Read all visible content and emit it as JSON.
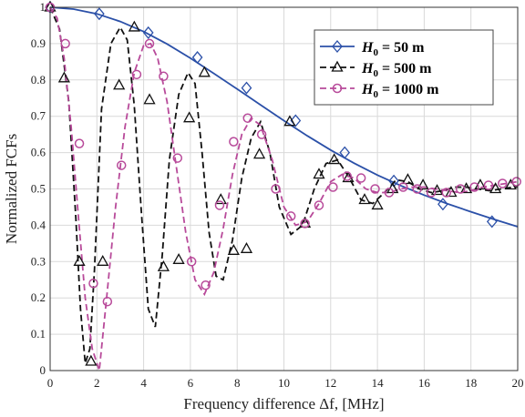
{
  "chart_data": {
    "type": "line",
    "xlabel": "Frequency difference Δf, [MHz]",
    "ylabel": "Normalized FCFs",
    "xlim": [
      0,
      20
    ],
    "ylim": [
      0,
      1
    ],
    "xticks": [
      "0",
      "2",
      "4",
      "6",
      "8",
      "10",
      "12",
      "14",
      "16",
      "18",
      "20"
    ],
    "yticks": [
      "0",
      "0.1",
      "0.2",
      "0.3",
      "0.4",
      "0.5",
      "0.6",
      "0.7",
      "0.8",
      "0.9",
      "1"
    ],
    "grid": true,
    "legend_position": "top-right",
    "series": [
      {
        "name": "H0 = 50 m",
        "legend_symbol": "H",
        "legend_subscript": "0",
        "legend_value": " = 50 m",
        "color": "#2b50a8",
        "line": "solid",
        "marker": "diamond",
        "x": [
          0,
          1,
          2,
          3,
          4,
          5,
          6,
          7,
          8,
          9,
          10,
          11,
          12,
          13,
          14,
          15,
          16,
          17,
          18,
          19,
          20
        ],
        "y": [
          1.0,
          0.995,
          0.982,
          0.961,
          0.933,
          0.899,
          0.86,
          0.818,
          0.775,
          0.731,
          0.688,
          0.646,
          0.607,
          0.571,
          0.538,
          0.509,
          0.483,
          0.459,
          0.437,
          0.416,
          0.396
        ],
        "marker_x": [
          0,
          2.1,
          4.2,
          6.3,
          8.4,
          10.5,
          12.6,
          14.7,
          16.8,
          18.9
        ],
        "marker_y": [
          1.0,
          0.982,
          0.93,
          0.862,
          0.778,
          0.688,
          0.6,
          0.522,
          0.458,
          0.41
        ]
      },
      {
        "name": "H0 = 500 m",
        "legend_symbol": "H",
        "legend_subscript": "0",
        "legend_value": " = 500 m",
        "color": "#111111",
        "line": "dashed",
        "marker": "triangle",
        "x": [
          0,
          0.4,
          0.8,
          1.1,
          1.3,
          1.5,
          1.7,
          1.9,
          2.2,
          2.6,
          3.0,
          3.3,
          3.6,
          3.9,
          4.2,
          4.5,
          4.8,
          5.1,
          5.5,
          5.9,
          6.2,
          6.5,
          6.8,
          7.1,
          7.4,
          7.8,
          8.2,
          8.6,
          9.0,
          9.4,
          9.8,
          10.3,
          10.8,
          11.3,
          11.8,
          12.3,
          12.8,
          13.3,
          13.8,
          14.3,
          14.8,
          15.3,
          15.8,
          16.3,
          16.8,
          17.3,
          17.8,
          18.3,
          18.8,
          19.3,
          19.8,
          20.0
        ],
        "y": [
          1.0,
          0.94,
          0.74,
          0.42,
          0.17,
          0.02,
          0.06,
          0.28,
          0.72,
          0.9,
          0.945,
          0.91,
          0.73,
          0.44,
          0.17,
          0.12,
          0.32,
          0.58,
          0.76,
          0.82,
          0.79,
          0.6,
          0.38,
          0.26,
          0.25,
          0.36,
          0.53,
          0.64,
          0.685,
          0.6,
          0.45,
          0.375,
          0.4,
          0.5,
          0.57,
          0.58,
          0.53,
          0.47,
          0.46,
          0.49,
          0.525,
          0.52,
          0.5,
          0.49,
          0.495,
          0.505,
          0.505,
          0.5,
          0.495,
          0.5,
          0.505,
          0.505
        ],
        "marker_x": [
          0,
          0.6,
          1.25,
          1.75,
          2.25,
          2.95,
          3.6,
          4.25,
          4.85,
          5.5,
          5.95,
          6.6,
          7.3,
          7.85,
          8.4,
          8.95,
          10.25,
          10.9,
          11.5,
          12.15,
          12.75,
          13.45,
          14.0,
          14.65,
          15.3,
          15.95,
          16.55,
          17.15,
          17.8,
          18.4,
          19.05,
          19.7
        ],
        "marker_y": [
          1.0,
          0.805,
          0.3,
          0.025,
          0.3,
          0.785,
          0.945,
          0.745,
          0.285,
          0.305,
          0.695,
          0.82,
          0.47,
          0.33,
          0.335,
          0.595,
          0.685,
          0.405,
          0.54,
          0.58,
          0.53,
          0.47,
          0.455,
          0.5,
          0.525,
          0.51,
          0.495,
          0.49,
          0.5,
          0.51,
          0.5,
          0.51
        ]
      },
      {
        "name": "H0 = 1000 m",
        "legend_symbol": "H",
        "legend_subscript": "0",
        "legend_value": " = 1000 m",
        "color": "#b84a9a",
        "line": "dashed",
        "marker": "circle",
        "x": [
          0,
          0.3,
          0.6,
          0.9,
          1.2,
          1.5,
          1.8,
          2.1,
          2.4,
          2.8,
          3.2,
          3.6,
          4.0,
          4.3,
          4.6,
          5.0,
          5.4,
          5.8,
          6.2,
          6.6,
          7.0,
          7.4,
          7.8,
          8.2,
          8.6,
          9.0,
          9.5,
          10.0,
          10.5,
          11.0,
          11.5,
          12.0,
          12.5,
          13.0,
          13.5,
          14.0,
          14.5,
          15.0,
          15.5,
          16.0,
          16.5,
          17.0,
          17.5,
          18.0,
          18.5,
          19.0,
          19.5,
          20.0
        ],
        "y": [
          1.0,
          0.97,
          0.86,
          0.67,
          0.43,
          0.2,
          0.06,
          0.0,
          0.19,
          0.45,
          0.67,
          0.82,
          0.895,
          0.9,
          0.86,
          0.74,
          0.56,
          0.38,
          0.25,
          0.21,
          0.27,
          0.39,
          0.54,
          0.65,
          0.695,
          0.675,
          0.58,
          0.45,
          0.4,
          0.41,
          0.46,
          0.52,
          0.54,
          0.53,
          0.5,
          0.49,
          0.49,
          0.5,
          0.505,
          0.505,
          0.5,
          0.495,
          0.49,
          0.495,
          0.505,
          0.51,
          0.515,
          0.52
        ],
        "marker_x": [
          0,
          0.65,
          1.25,
          1.85,
          2.45,
          3.05,
          3.7,
          4.25,
          4.85,
          5.45,
          6.05,
          6.65,
          7.25,
          7.85,
          8.45,
          9.05,
          9.65,
          10.3,
          10.9,
          11.5,
          12.1,
          12.7,
          13.3,
          13.9,
          14.5,
          15.1,
          15.7,
          16.3,
          16.95,
          17.55,
          18.15,
          18.75,
          19.35,
          19.95
        ],
        "marker_y": [
          1.0,
          0.9,
          0.625,
          0.24,
          0.19,
          0.565,
          0.815,
          0.9,
          0.81,
          0.585,
          0.3,
          0.235,
          0.455,
          0.63,
          0.695,
          0.65,
          0.5,
          0.425,
          0.405,
          0.455,
          0.505,
          0.535,
          0.53,
          0.5,
          0.49,
          0.505,
          0.5,
          0.49,
          0.49,
          0.5,
          0.505,
          0.51,
          0.515,
          0.52
        ]
      }
    ]
  }
}
